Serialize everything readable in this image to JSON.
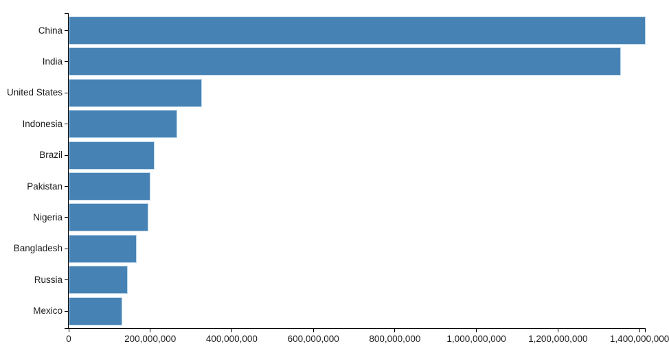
{
  "chart_data": {
    "type": "bar",
    "orientation": "horizontal",
    "title": "",
    "xlabel": "",
    "ylabel": "",
    "grid": false,
    "legend_position": "none",
    "categories": [
      "China",
      "India",
      "United States",
      "Indonesia",
      "Brazil",
      "Pakistan",
      "Nigeria",
      "Bangladesh",
      "Russia",
      "Mexico"
    ],
    "values": [
      1415045928,
      1354051854,
      326766748,
      266794980,
      210867954,
      200813818,
      195875237,
      166368149,
      143964709,
      130759074
    ],
    "xlim": [
      0,
      1415045928
    ],
    "x_ticks": [
      {
        "value": 0,
        "label": "0"
      },
      {
        "value": 200000000,
        "label": "200,000,000"
      },
      {
        "value": 400000000,
        "label": "400,000,000"
      },
      {
        "value": 600000000,
        "label": "600,000,000"
      },
      {
        "value": 800000000,
        "label": "800,000,000"
      },
      {
        "value": 1000000000,
        "label": "1,000,000,000"
      },
      {
        "value": 1200000000,
        "label": "1,200,000,000"
      },
      {
        "value": 1400000000,
        "label": "1,400,000,000"
      }
    ],
    "colors": {
      "bar": "#4682b4",
      "bar_border": "#bdd7eb",
      "axis": "#000000",
      "text": "#1a1a1a"
    }
  }
}
